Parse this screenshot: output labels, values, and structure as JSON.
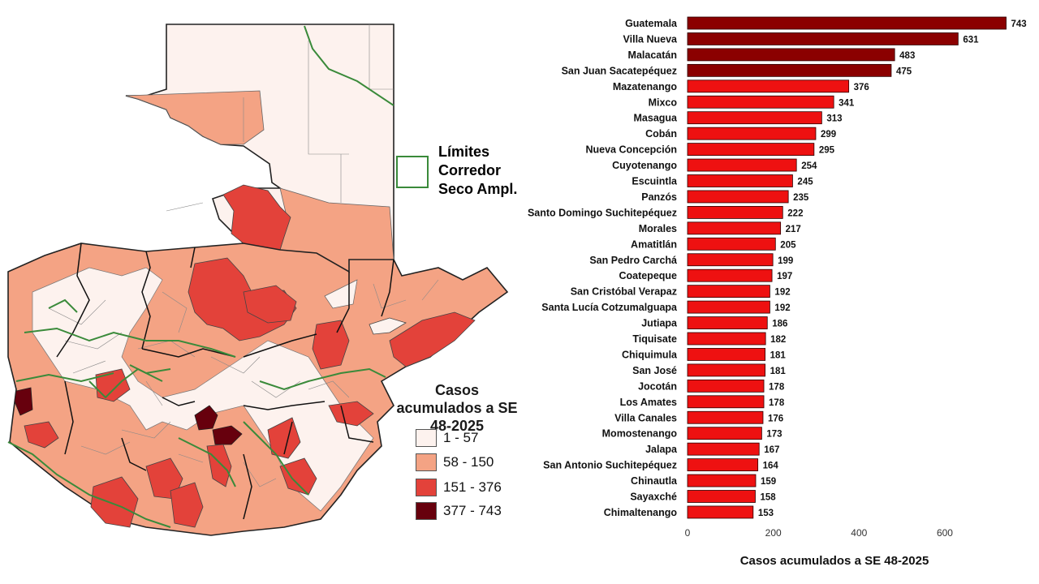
{
  "map": {
    "corridor_legend_label": "Límites Corredor Seco Ampl.",
    "corridor_color": "#3a8a3a",
    "legend_title": "Casos acumulados a SE 48-2025",
    "classes": [
      {
        "label": "1 - 57",
        "color": "#fdf2ee"
      },
      {
        "label": "58 - 150",
        "color": "#f4a384"
      },
      {
        "label": "151 - 376",
        "color": "#e3423a"
      },
      {
        "label": "377 - 743",
        "color": "#67000d"
      }
    ]
  },
  "chart_data": {
    "type": "bar",
    "orientation": "horizontal",
    "categories": [
      "Guatemala",
      "Villa Nueva",
      "Malacatán",
      "San Juan Sacatepéquez",
      "Mazatenango",
      "Mixco",
      "Masagua",
      "Cobán",
      "Nueva Concepción",
      "Cuyotenango",
      "Escuintla",
      "Panzós",
      "Santo Domingo Suchitepéquez",
      "Morales",
      "Amatitlán",
      "San Pedro Carchá",
      "Coatepeque",
      "San Cristóbal Verapaz",
      "Santa Lucía Cotzumalguapa",
      "Jutiapa",
      "Tiquisate",
      "Chiquimula",
      "San José",
      "Jocotán",
      "Los Amates",
      "Villa Canales",
      "Momostenango",
      "Jalapa",
      "San Antonio Suchitepéquez",
      "Chinautla",
      "Sayaxché",
      "Chimaltenango"
    ],
    "values": [
      743,
      631,
      483,
      475,
      376,
      341,
      313,
      299,
      295,
      254,
      245,
      235,
      222,
      217,
      205,
      199,
      197,
      192,
      192,
      186,
      182,
      181,
      181,
      178,
      178,
      176,
      173,
      167,
      164,
      159,
      158,
      153
    ],
    "value_labels": [
      "743",
      "631",
      "483",
      "475",
      "376",
      "341",
      "313",
      "299",
      "295",
      "254",
      "245",
      "235",
      "222",
      "217",
      "205",
      "199",
      "197",
      "192",
      "192",
      "186",
      "182",
      "181",
      "181",
      "178",
      "178",
      "176",
      "173",
      "167",
      "164",
      "159",
      "158",
      "153"
    ],
    "xlabel": "Casos acumulados a SE 48-2025",
    "xticks": [
      0,
      200,
      400,
      600
    ],
    "xtick_labels": [
      "0",
      "200",
      "400",
      "600"
    ],
    "xlim": [
      0,
      760
    ],
    "grid": false,
    "colors": {
      "high": "#8b0000",
      "mid": "#ee1111",
      "edge": "#2a0000"
    },
    "high_threshold": 377
  }
}
